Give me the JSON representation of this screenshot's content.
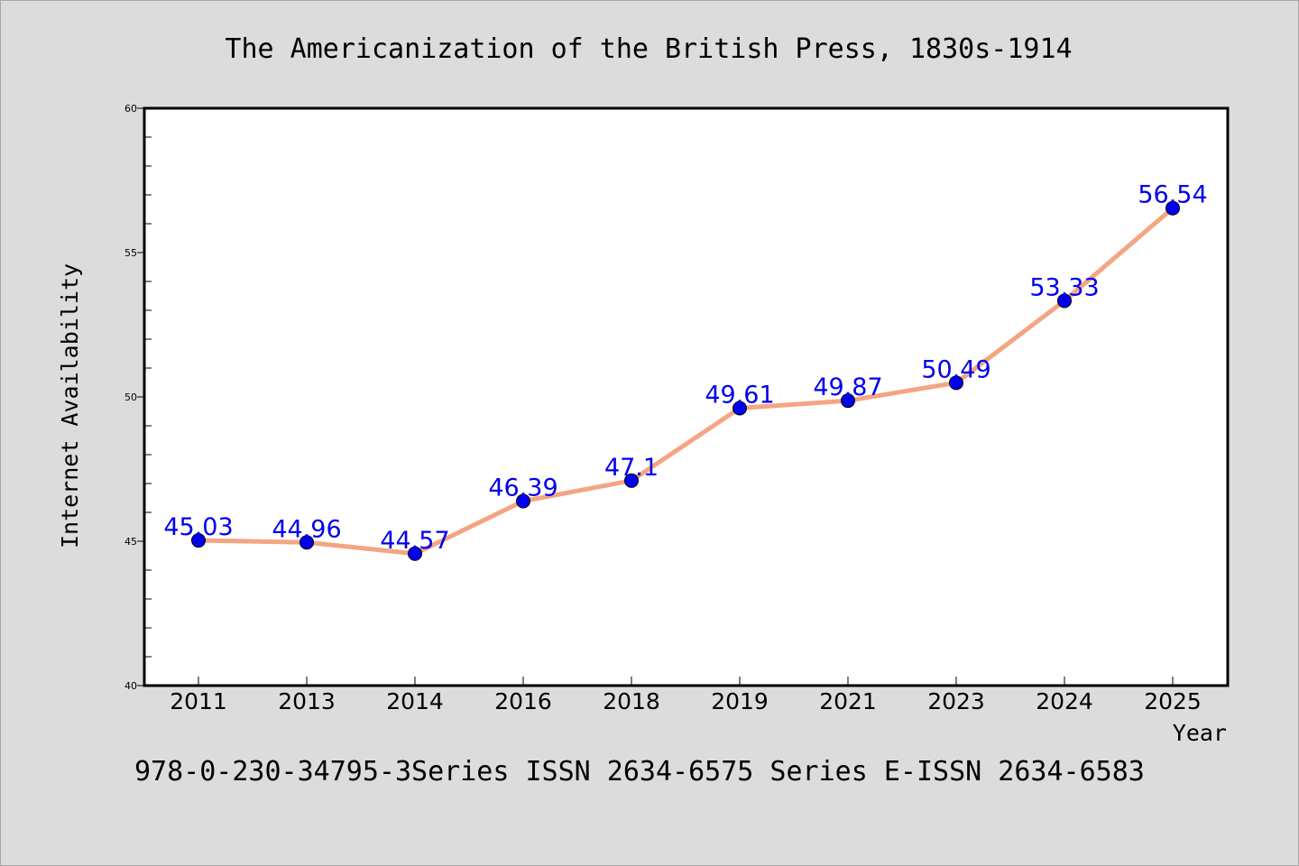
{
  "chart_data": {
    "type": "line",
    "title": "The Americanization of the British Press, 1830s-1914",
    "xlabel": "Year",
    "ylabel": "Internet Availability",
    "footer": "978-0-230-34795-3Series ISSN 2634-6575 Series E-ISSN 2634-6583",
    "categories": [
      "2011",
      "2013",
      "2014",
      "2016",
      "2018",
      "2019",
      "2021",
      "2023",
      "2024",
      "2025"
    ],
    "values": [
      45.03,
      44.96,
      44.57,
      46.39,
      47.1,
      49.61,
      49.87,
      50.49,
      53.33,
      56.54
    ],
    "data_labels": [
      "45.03",
      "44.96",
      "44.57",
      "46.39",
      "47.1",
      "49.61",
      "49.87",
      "50.49",
      "53.33",
      "56.54"
    ],
    "ylim": [
      40,
      60
    ],
    "y_major_ticks": [
      "40",
      "45",
      "50",
      "55",
      "60"
    ],
    "grid": false,
    "legend": "none",
    "colors": {
      "line": "#f4a582",
      "marker": "#0000ee",
      "label": "#0000ee",
      "axis": "#000000",
      "background": "#dcdcdc",
      "plot_background": "#ffffff"
    }
  }
}
